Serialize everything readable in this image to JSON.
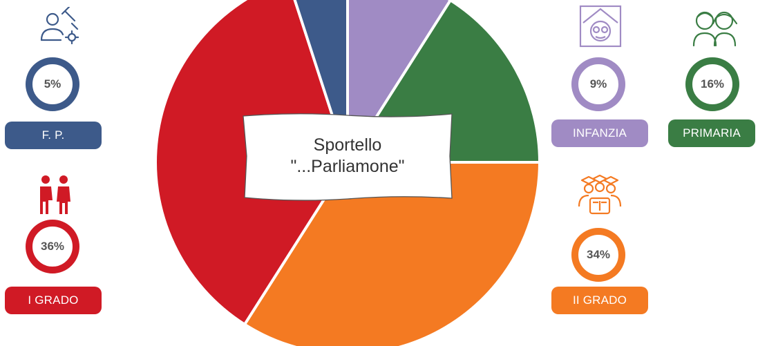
{
  "chart_data": {
    "type": "pie",
    "title": "Sportello \"...Parliamone\"",
    "colors": {
      "INFANZIA": "#a08bc4",
      "PRIMARIA": "#3a7d44",
      "II GRADO": "#f47a22",
      "I GRADO": "#d01a25",
      "F. P.": "#3d5a8a"
    },
    "categories": [
      "INFANZIA",
      "PRIMARIA",
      "II GRADO",
      "I GRADO",
      "F. P."
    ],
    "values": [
      9,
      16,
      34,
      36,
      5
    ],
    "value_labels": [
      "9%",
      "16%",
      "34%",
      "36%",
      "5%"
    ],
    "legend": "around"
  },
  "center": {
    "line1": "Sportello",
    "line2": "\"...Parliamone\""
  },
  "icons": {
    "F. P.": "technician-tools-icon",
    "I GRADO": "students-icon",
    "INFANZIA": "kindergarten-house-icon",
    "PRIMARIA": "children-icon",
    "II GRADO": "graduates-book-icon"
  }
}
